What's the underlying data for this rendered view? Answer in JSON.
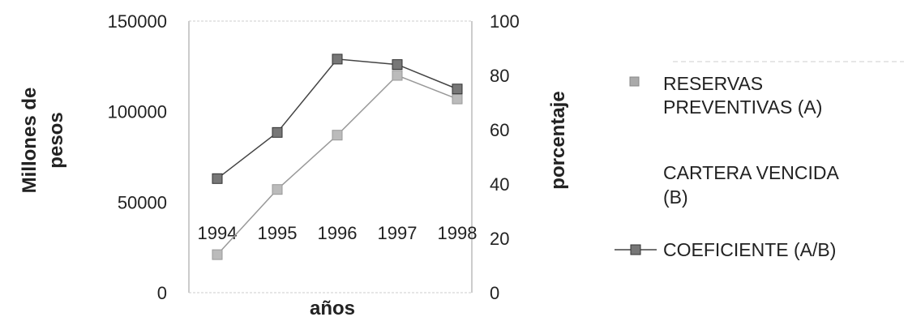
{
  "chart_data": {
    "type": "line",
    "categories": [
      "1994",
      "1995",
      "1996",
      "1997",
      "1998"
    ],
    "xlabel": "años",
    "ylabel": "Millones de pesos",
    "y2label": "porcentaje",
    "ylim": [
      0,
      150000
    ],
    "y2lim": [
      0,
      100
    ],
    "y_ticks": [
      "0",
      "50000",
      "100000",
      "150000"
    ],
    "y2_ticks": [
      "0",
      "20",
      "40",
      "60",
      "80",
      "100"
    ],
    "grid": false,
    "legend_placement": "right",
    "series": [
      {
        "name": "RESERVAS PREVENTIVAS (A)",
        "axis": "left",
        "values": [
          21000,
          57000,
          87000,
          120000,
          107000
        ],
        "color": "#999999"
      },
      {
        "name": "CARTERA VENCIDA (B)",
        "axis": "left",
        "values": [
          null,
          null,
          null,
          null,
          null
        ],
        "color": "#cccccc"
      },
      {
        "name": "COEFICIENTE (A/B)",
        "axis": "right",
        "values": [
          42,
          59,
          86,
          84,
          75
        ],
        "color": "#444444"
      }
    ]
  }
}
